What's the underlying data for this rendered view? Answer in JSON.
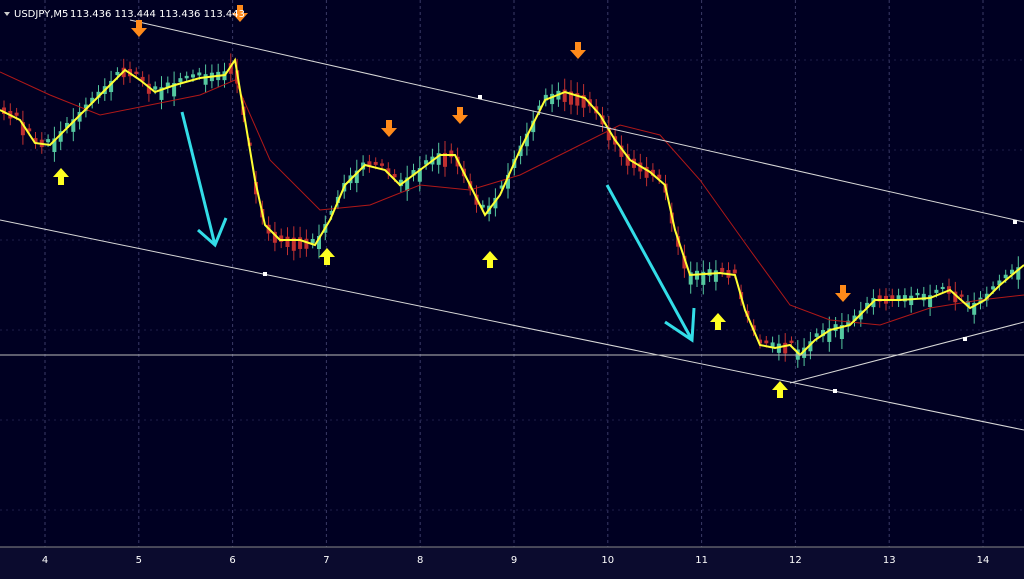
{
  "header": {
    "symbol": "USDJPY,M5",
    "quote": "113.436 113.444 113.436 113.443"
  },
  "x_axis": {
    "labels": [
      "4",
      "5",
      "6",
      "7",
      "8",
      "9",
      "10",
      "11",
      "12",
      "13",
      "14"
    ]
  }
}
